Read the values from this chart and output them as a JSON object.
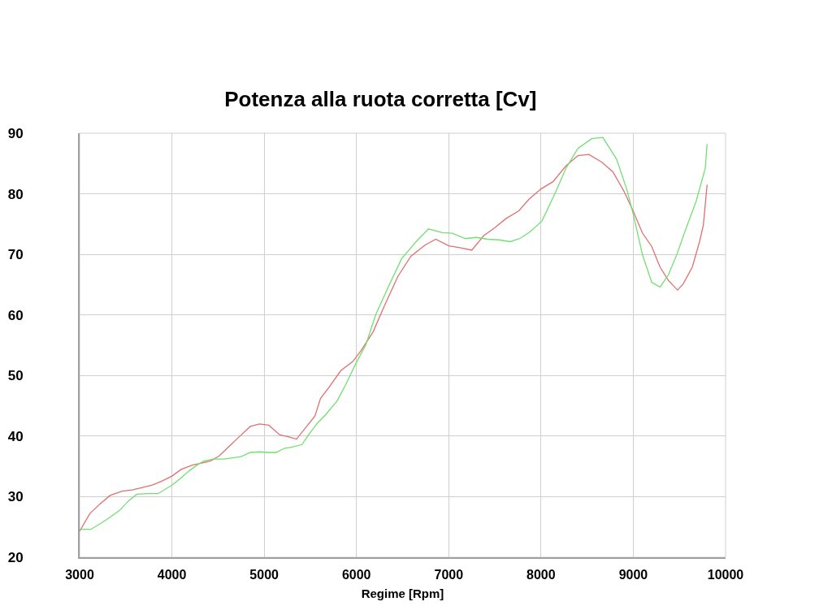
{
  "chart_data": {
    "type": "line",
    "title": "Potenza alla ruota corretta [Cv]",
    "xlabel": "Regime [Rpm]",
    "xlim": [
      3000,
      10000
    ],
    "xticks": [
      3000,
      4000,
      5000,
      6000,
      7000,
      8000,
      9000,
      10000
    ],
    "ylim": [
      20,
      90
    ],
    "yticks": [
      20,
      30,
      40,
      50,
      60,
      70,
      80,
      90
    ],
    "grid": true,
    "line_style": "solid",
    "series": [
      {
        "color": "#e07070",
        "x": [
          3000,
          3110,
          3220,
          3330,
          3460,
          3570,
          3680,
          3780,
          3880,
          4000,
          4100,
          4220,
          4310,
          4420,
          4510,
          4620,
          4730,
          4850,
          4950,
          5050,
          5170,
          5260,
          5350,
          5450,
          5550,
          5610,
          5710,
          5830,
          5960,
          6050,
          6180,
          6300,
          6450,
          6590,
          6740,
          6860,
          7000,
          7120,
          7250,
          7380,
          7500,
          7620,
          7760,
          7870,
          8000,
          8130,
          8270,
          8400,
          8520,
          8660,
          8780,
          8900,
          9000,
          9100,
          9200,
          9290,
          9380,
          9480,
          9540,
          9640,
          9720,
          9760,
          9800
        ],
        "values": [
          24.3,
          27.2,
          28.8,
          30.2,
          30.9,
          31.1,
          31.5,
          31.9,
          32.5,
          33.4,
          34.5,
          35.2,
          35.5,
          35.9,
          36.7,
          38.3,
          39.9,
          41.6,
          42.0,
          41.8,
          40.2,
          39.9,
          39.5,
          41.4,
          43.3,
          46.2,
          48.2,
          50.8,
          52.3,
          54.1,
          57.2,
          61.4,
          66.4,
          69.7,
          71.5,
          72.5,
          71.4,
          71.1,
          70.7,
          73.1,
          74.4,
          75.9,
          77.2,
          79.1,
          80.8,
          82.0,
          84.6,
          86.3,
          86.5,
          85.2,
          83.6,
          80.4,
          77.1,
          73.5,
          71.3,
          67.9,
          65.7,
          64.1,
          65.1,
          67.9,
          72.2,
          74.9,
          81.5
        ]
      },
      {
        "color": "#70e070",
        "x": [
          3000,
          3120,
          3220,
          3310,
          3430,
          3530,
          3620,
          3740,
          3850,
          4000,
          4100,
          4190,
          4280,
          4350,
          4450,
          4560,
          4660,
          4750,
          4850,
          4950,
          5040,
          5130,
          5220,
          5300,
          5410,
          5480,
          5580,
          5670,
          5790,
          5890,
          6000,
          6100,
          6210,
          6350,
          6490,
          6640,
          6780,
          6930,
          7040,
          7180,
          7300,
          7420,
          7540,
          7670,
          7780,
          7880,
          8010,
          8150,
          8270,
          8400,
          8550,
          8670,
          8820,
          8930,
          9000,
          9100,
          9200,
          9290,
          9380,
          9470,
          9570,
          9680,
          9780,
          9800
        ],
        "values": [
          24.6,
          24.6,
          25.5,
          26.4,
          27.7,
          29.3,
          30.4,
          30.5,
          30.5,
          31.9,
          33.1,
          34.3,
          35.3,
          35.9,
          36.2,
          36.2,
          36.4,
          36.6,
          37.3,
          37.4,
          37.3,
          37.3,
          38.0,
          38.2,
          38.6,
          40.2,
          42.2,
          43.6,
          45.8,
          48.7,
          52.2,
          55.0,
          60.1,
          64.8,
          69.3,
          72.0,
          74.2,
          73.6,
          73.5,
          72.6,
          72.8,
          72.5,
          72.4,
          72.1,
          72.7,
          73.7,
          75.5,
          80.0,
          84.2,
          87.5,
          89.1,
          89.3,
          85.7,
          80.7,
          76.6,
          69.9,
          65.4,
          64.6,
          66.6,
          69.9,
          74.2,
          78.7,
          84.2,
          88.2
        ]
      }
    ]
  }
}
